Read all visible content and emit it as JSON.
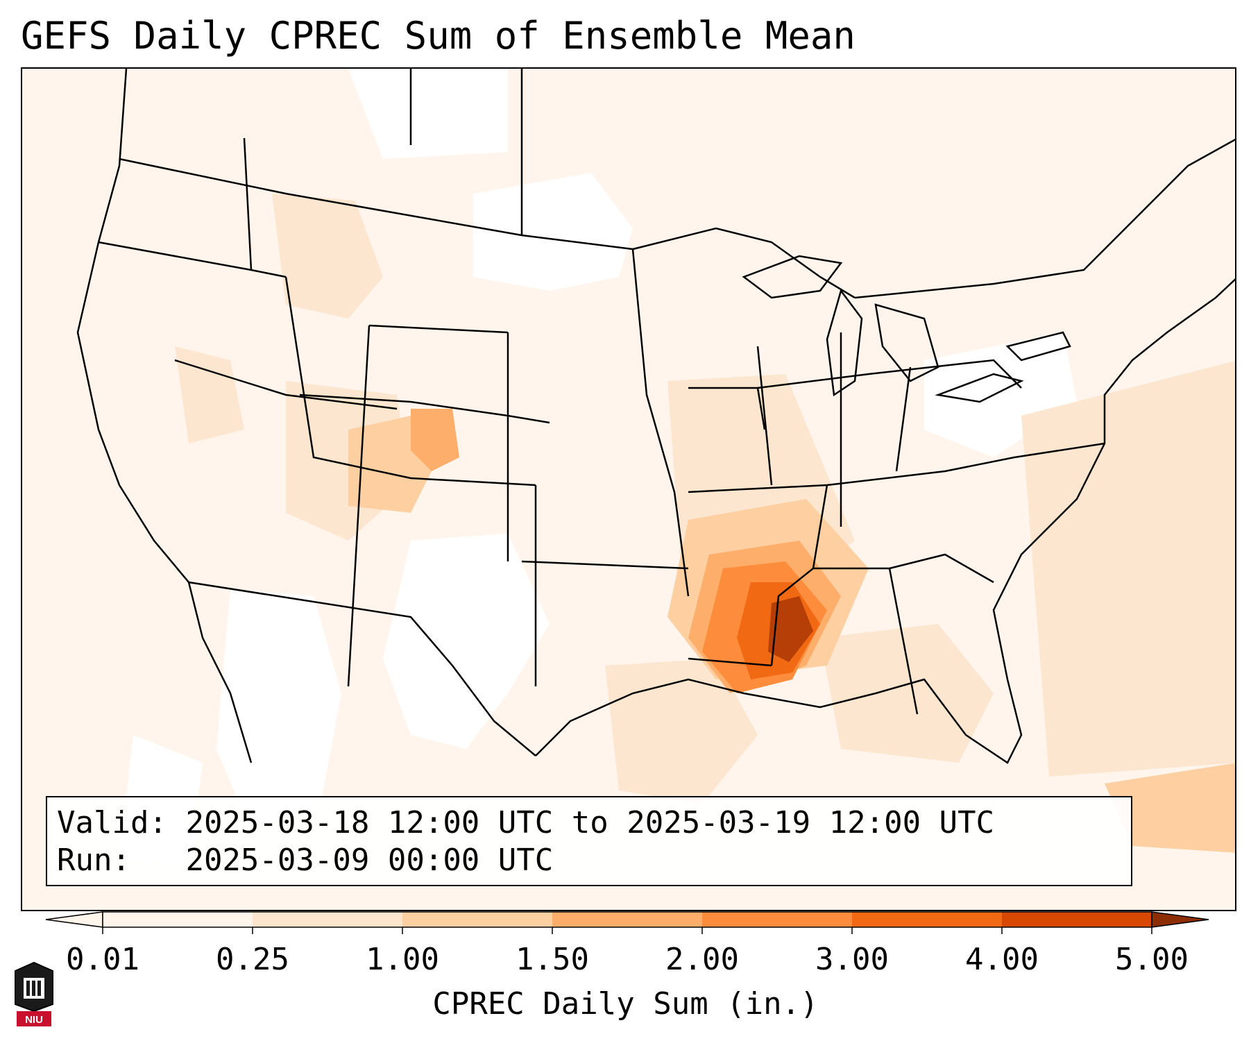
{
  "title": "GEFS Daily CPREC Sum of Ensemble Mean",
  "info": {
    "valid_label": "Valid:",
    "valid_value": "2025-03-18 12:00 UTC to 2025-03-19 12:00 UTC",
    "run_label": "Run:",
    "run_value": "2025-03-09 00:00 UTC"
  },
  "colorbar": {
    "label": "CPREC Daily Sum (in.)",
    "ticks": [
      "0.01",
      "0.25",
      "1.00",
      "1.50",
      "2.00",
      "3.00",
      "4.00",
      "5.00"
    ],
    "colors": [
      "#fff5eb",
      "#fee6ce",
      "#fdd0a2",
      "#fdae6b",
      "#fd8d3c",
      "#f16913",
      "#d94801",
      "#8c2d04"
    ],
    "extend": "both"
  },
  "map": {
    "region": "CONUS",
    "variable": "CPREC",
    "max_area": "Mississippi / Louisiana"
  },
  "logo_text": "NIU"
}
